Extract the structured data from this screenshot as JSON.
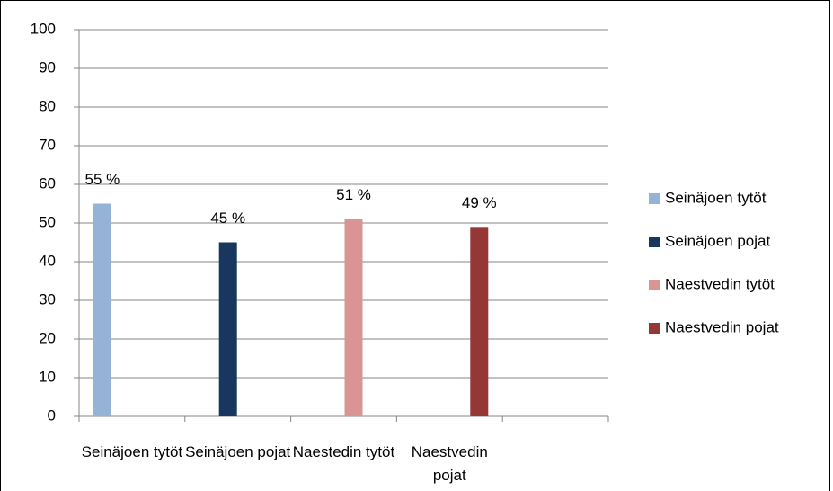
{
  "chart_data": {
    "type": "bar",
    "categories": [
      "Seinäjoen tytöt",
      "Seinäjoen pojat",
      "Naestedin tytöt",
      "Naestvedin pojat",
      null
    ],
    "series": [
      {
        "name": "Seinäjoen tytöt",
        "color": "#95b3d7",
        "values": [
          55,
          null,
          null,
          null,
          null
        ],
        "value_labels": [
          "55 %",
          null,
          null,
          null,
          null
        ]
      },
      {
        "name": "Seinäjoen pojat",
        "color": "#17375e",
        "values": [
          null,
          45,
          null,
          null,
          null
        ],
        "value_labels": [
          null,
          "45 %",
          null,
          null,
          null
        ]
      },
      {
        "name": "Naestvedin tytöt",
        "color": "#d99594",
        "values": [
          null,
          null,
          51,
          null,
          null
        ],
        "value_labels": [
          null,
          null,
          "51 %",
          null,
          null
        ]
      },
      {
        "name": "Naestvedin pojat",
        "color": "#953735",
        "values": [
          null,
          null,
          null,
          49,
          null
        ],
        "value_labels": [
          null,
          null,
          null,
          "49 %",
          null
        ]
      }
    ],
    "ylim": [
      0,
      100
    ],
    "yticks": [
      0,
      10,
      20,
      30,
      40,
      50,
      60,
      70,
      80,
      90,
      100
    ],
    "grid": true,
    "legend": "right"
  }
}
